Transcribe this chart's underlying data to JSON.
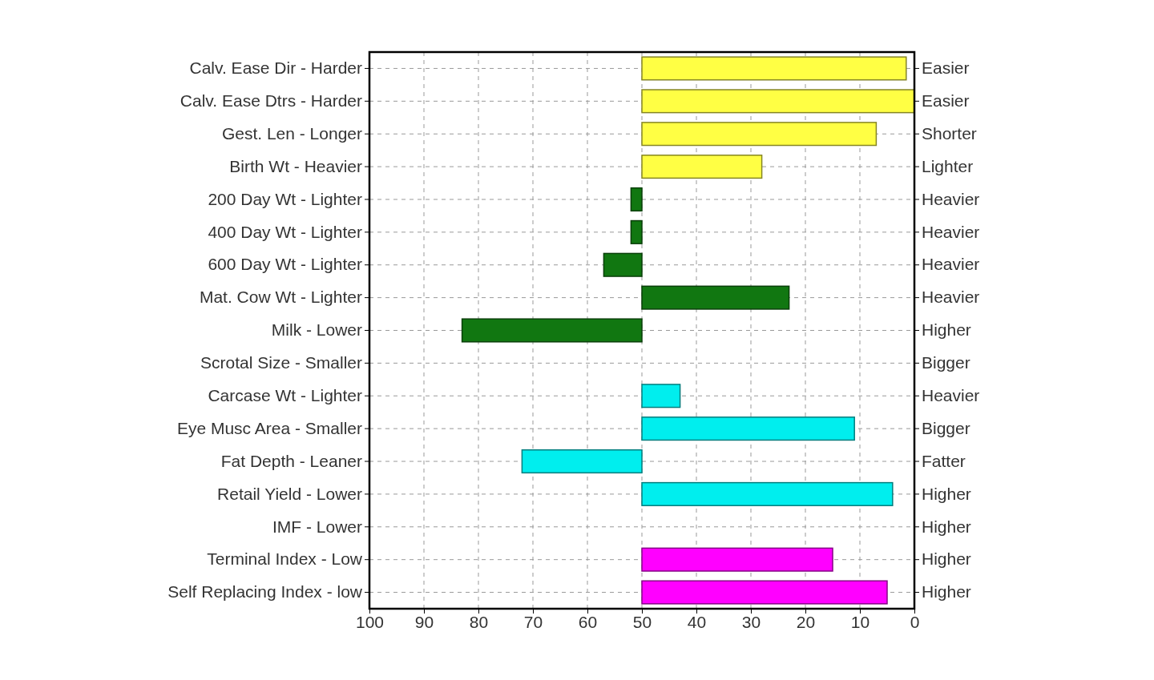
{
  "chart_data": {
    "type": "bar",
    "orientation": "horizontal",
    "categories": [
      "Calv. Ease Dir - Harder",
      "Calv. Ease Dtrs - Harder",
      "Gest. Len - Longer",
      "Birth Wt - Heavier",
      "200 Day Wt - Lighter",
      "400 Day Wt - Lighter",
      "600 Day Wt - Lighter",
      "Mat. Cow Wt - Lighter",
      "Milk - Lower",
      "Scrotal Size - Smaller",
      "Carcase Wt - Lighter",
      "Eye Musc Area - Smaller",
      "Fat Depth - Leaner",
      "Retail Yield - Lower",
      "IMF - Lower",
      "Terminal Index - Low",
      "Self Replacing Index - low"
    ],
    "y2_categories": [
      "Easier",
      "Easier",
      "Shorter",
      "Lighter",
      "Heavier",
      "Heavier",
      "Heavier",
      "Heavier",
      "Higher",
      "Bigger",
      "Heavier",
      "Bigger",
      "Fatter",
      "Higher",
      "Higher",
      "Higher",
      "Higher"
    ],
    "base": [
      50,
      50,
      50,
      50,
      50,
      50,
      50,
      50,
      50,
      null,
      50,
      50,
      50,
      50,
      null,
      50,
      50
    ],
    "values": [
      -48.5,
      -50,
      -43,
      -22,
      2,
      2,
      7,
      -27,
      33,
      null,
      -7,
      -39,
      22,
      -46,
      null,
      -35,
      -45
    ],
    "colors": [
      "#ffff44",
      "#ffff44",
      "#ffff44",
      "#ffff44",
      "#117711",
      "#117711",
      "#117711",
      "#117711",
      "#117711",
      null,
      "#00eeee",
      "#00eeee",
      "#00eeee",
      "#00eeee",
      null,
      "#ff00ff",
      "#ff00ff"
    ],
    "xlim": [
      100,
      0
    ],
    "xticks": [
      100,
      90,
      80,
      70,
      60,
      50,
      40,
      30,
      20,
      10,
      0
    ],
    "grid": true
  }
}
